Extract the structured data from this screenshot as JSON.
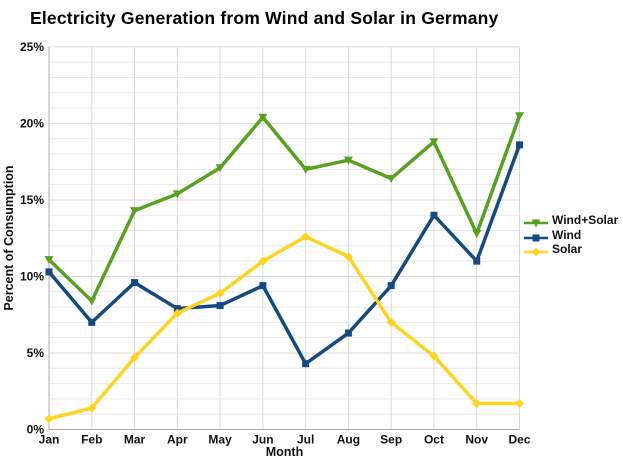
{
  "chart_data": {
    "type": "line",
    "title": "Electricity Generation from Wind and Solar in Germany",
    "xlabel": "Month",
    "ylabel": "Percent of Consumption",
    "ylim": [
      0,
      25
    ],
    "y_tick_step": 5,
    "y_minor_grid_step": 1,
    "y_tick_labels": [
      "0%",
      "5%",
      "10%",
      "15%",
      "20%",
      "25%"
    ],
    "categories": [
      "Jan",
      "Feb",
      "Mar",
      "Apr",
      "May",
      "Jun",
      "Jul",
      "Aug",
      "Sep",
      "Oct",
      "Nov",
      "Dec"
    ],
    "grid": true,
    "legend_position": "right",
    "series": [
      {
        "name": "Wind+Solar",
        "color": "#57A121",
        "marker": "triangle-down",
        "values": [
          11.1,
          8.4,
          14.3,
          15.4,
          17.1,
          20.4,
          17.0,
          17.6,
          16.4,
          18.8,
          12.8,
          20.5
        ]
      },
      {
        "name": "Wind",
        "color": "#134A80",
        "marker": "square",
        "values": [
          10.3,
          7.0,
          9.6,
          7.9,
          8.1,
          9.4,
          4.3,
          6.3,
          9.4,
          14.0,
          11.0,
          18.6
        ]
      },
      {
        "name": "Solar",
        "color": "#FFD320",
        "marker": "diamond",
        "values": [
          0.7,
          1.4,
          4.7,
          7.6,
          8.9,
          11.0,
          12.6,
          11.3,
          7.0,
          4.8,
          1.7,
          1.7
        ]
      }
    ],
    "style": {
      "minor_grid_color": "#E8E8E8",
      "major_grid_color": "#D9D9D9",
      "axis_color": "#ADADAD",
      "text_color": "#111111",
      "background_color": "#FFFFFF"
    }
  }
}
